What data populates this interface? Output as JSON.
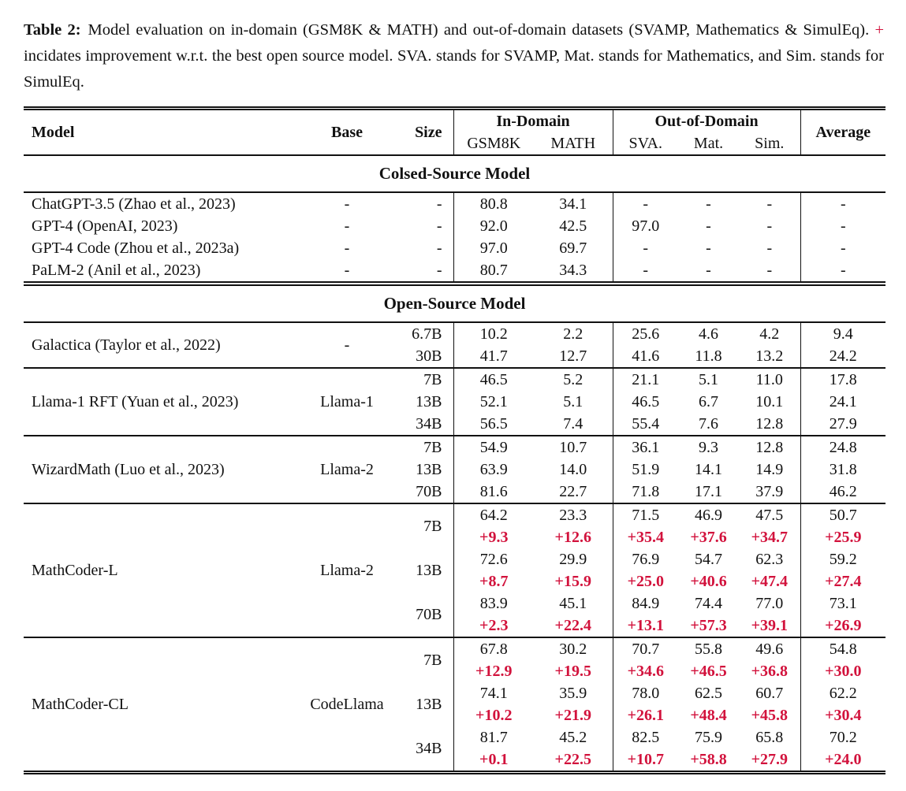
{
  "caption": {
    "label": "Table 2:",
    "part1": "Model evaluation on in-domain (GSM8K & MATH) and out-of-domain datasets (SVAMP, Mathematics & SimulEq). ",
    "plus": "+",
    "part2": " incidates improvement w.r.t. the best open source model. SVA. stands for SVAMP, Mat. stands for Mathematics, and Sim. stands for SimulEq."
  },
  "colors": {
    "accent_red": "#d2123c",
    "rule_black": "#111111",
    "background": "#ffffff"
  },
  "table": {
    "header": {
      "model": "Model",
      "base": "Base",
      "size": "Size",
      "in_domain": "In-Domain",
      "out_of_domain": "Out-of-Domain",
      "average": "Average",
      "sub": [
        "GSM8K",
        "MATH",
        "SVA.",
        "Mat.",
        "Sim."
      ]
    },
    "sections": [
      {
        "heading": "Colsed-Source Model",
        "double_top": false,
        "blocks": [
          {
            "models": [
              {
                "name": "ChatGPT-3.5 (Zhao et al., 2023)",
                "base": "-",
                "rows": [
                  {
                    "size": "-",
                    "values": [
                      "80.8",
                      "34.1",
                      "-",
                      "-",
                      "-",
                      "-"
                    ]
                  }
                ]
              },
              {
                "name": "GPT-4 (OpenAI, 2023)",
                "base": "-",
                "rows": [
                  {
                    "size": "-",
                    "values": [
                      "92.0",
                      "42.5",
                      "97.0",
                      "-",
                      "-",
                      "-"
                    ]
                  }
                ]
              },
              {
                "name": "GPT-4 Code (Zhou et al., 2023a)",
                "base": "-",
                "rows": [
                  {
                    "size": "-",
                    "values": [
                      "97.0",
                      "69.7",
                      "-",
                      "-",
                      "-",
                      "-"
                    ]
                  }
                ]
              },
              {
                "name": "PaLM-2 (Anil et al., 2023)",
                "base": "-",
                "rows": [
                  {
                    "size": "-",
                    "values": [
                      "80.7",
                      "34.3",
                      "-",
                      "-",
                      "-",
                      "-"
                    ]
                  }
                ]
              }
            ]
          }
        ]
      },
      {
        "heading": "Open-Source Model",
        "double_top": true,
        "blocks": [
          {
            "models": [
              {
                "name": "Galactica (Taylor et al., 2022)",
                "base": "-",
                "rows": [
                  {
                    "size": "6.7B",
                    "values": [
                      "10.2",
                      "2.2",
                      "25.6",
                      "4.6",
                      "4.2",
                      "9.4"
                    ]
                  },
                  {
                    "size": "30B",
                    "values": [
                      "41.7",
                      "12.7",
                      "41.6",
                      "11.8",
                      "13.2",
                      "24.2"
                    ]
                  }
                ]
              }
            ]
          },
          {
            "models": [
              {
                "name": "Llama-1 RFT (Yuan et al., 2023)",
                "base": "Llama-1",
                "rows": [
                  {
                    "size": "7B",
                    "values": [
                      "46.5",
                      "5.2",
                      "21.1",
                      "5.1",
                      "11.0",
                      "17.8"
                    ]
                  },
                  {
                    "size": "13B",
                    "values": [
                      "52.1",
                      "5.1",
                      "46.5",
                      "6.7",
                      "10.1",
                      "24.1"
                    ]
                  },
                  {
                    "size": "34B",
                    "values": [
                      "56.5",
                      "7.4",
                      "55.4",
                      "7.6",
                      "12.8",
                      "27.9"
                    ]
                  }
                ]
              }
            ]
          },
          {
            "models": [
              {
                "name": "WizardMath (Luo et al., 2023)",
                "base": "Llama-2",
                "rows": [
                  {
                    "size": "7B",
                    "values": [
                      "54.9",
                      "10.7",
                      "36.1",
                      "9.3",
                      "12.8",
                      "24.8"
                    ]
                  },
                  {
                    "size": "13B",
                    "values": [
                      "63.9",
                      "14.0",
                      "51.9",
                      "14.1",
                      "14.9",
                      "31.8"
                    ]
                  },
                  {
                    "size": "70B",
                    "values": [
                      "81.6",
                      "22.7",
                      "71.8",
                      "17.1",
                      "37.9",
                      "46.2"
                    ]
                  }
                ]
              }
            ]
          },
          {
            "models": [
              {
                "name": "MathCoder-L",
                "base": "Llama-2",
                "rows": [
                  {
                    "size": "7B",
                    "values": [
                      "64.2",
                      "23.3",
                      "71.5",
                      "46.9",
                      "47.5",
                      "50.7"
                    ],
                    "improvement": [
                      "+9.3",
                      "+12.6",
                      "+35.4",
                      "+37.6",
                      "+34.7",
                      "+25.9"
                    ]
                  },
                  {
                    "size": "13B",
                    "values": [
                      "72.6",
                      "29.9",
                      "76.9",
                      "54.7",
                      "62.3",
                      "59.2"
                    ],
                    "improvement": [
                      "+8.7",
                      "+15.9",
                      "+25.0",
                      "+40.6",
                      "+47.4",
                      "+27.4"
                    ]
                  },
                  {
                    "size": "70B",
                    "values": [
                      "83.9",
                      "45.1",
                      "84.9",
                      "74.4",
                      "77.0",
                      "73.1"
                    ],
                    "improvement": [
                      "+2.3",
                      "+22.4",
                      "+13.1",
                      "+57.3",
                      "+39.1",
                      "+26.9"
                    ]
                  }
                ]
              }
            ]
          },
          {
            "models": [
              {
                "name": "MathCoder-CL",
                "base": "CodeLlama",
                "rows": [
                  {
                    "size": "7B",
                    "values": [
                      "67.8",
                      "30.2",
                      "70.7",
                      "55.8",
                      "49.6",
                      "54.8"
                    ],
                    "improvement": [
                      "+12.9",
                      "+19.5",
                      "+34.6",
                      "+46.5",
                      "+36.8",
                      "+30.0"
                    ]
                  },
                  {
                    "size": "13B",
                    "values": [
                      "74.1",
                      "35.9",
                      "78.0",
                      "62.5",
                      "60.7",
                      "62.2"
                    ],
                    "improvement": [
                      "+10.2",
                      "+21.9",
                      "+26.1",
                      "+48.4",
                      "+45.8",
                      "+30.4"
                    ]
                  },
                  {
                    "size": "34B",
                    "values": [
                      "81.7",
                      "45.2",
                      "82.5",
                      "75.9",
                      "65.8",
                      "70.2"
                    ],
                    "improvement": [
                      "+0.1",
                      "+22.5",
                      "+10.7",
                      "+58.8",
                      "+27.9",
                      "+24.0"
                    ]
                  }
                ]
              }
            ]
          }
        ]
      }
    ]
  }
}
